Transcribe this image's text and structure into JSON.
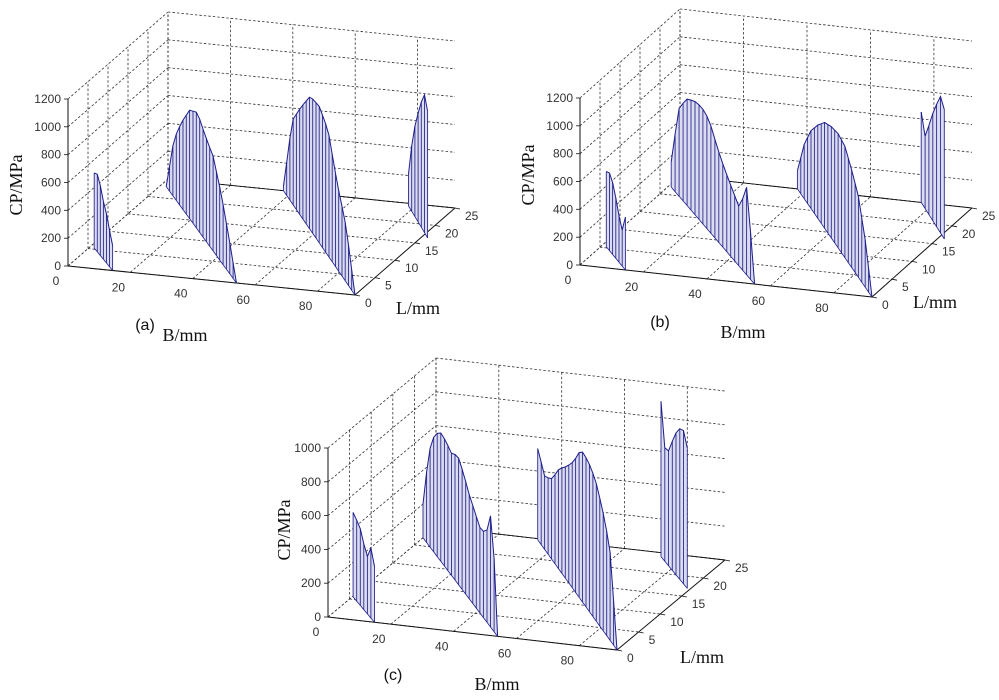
{
  "chart_data": [
    {
      "type": "stem3",
      "panel_label": "(a)",
      "xlabel": "B/mm",
      "ylabel": "L/mm",
      "zlabel": "CP/MPa",
      "xlim": [
        0,
        92
      ],
      "ylim": [
        0,
        25
      ],
      "zlim": [
        0,
        1200
      ],
      "xticks": [
        "0",
        "20",
        "40",
        "60",
        "80"
      ],
      "yticks": [
        "0",
        "5",
        "10",
        "15",
        "20",
        "25"
      ],
      "zticks": [
        "0",
        "200",
        "400",
        "600",
        "800",
        "1000",
        "1200"
      ],
      "grid": true,
      "ridges": [
        {
          "start": [
            1.6,
            5.3
          ],
          "end": [
            14.3,
            0
          ],
          "stems": 7,
          "cp": [
            540,
            560,
            540,
            430,
            400,
            330,
            250,
            180
          ]
        },
        {
          "start": [
            2,
            23
          ],
          "end": [
            54,
            0
          ],
          "stems": 22,
          "cp": [
            0,
            420,
            620,
            780,
            840,
            750,
            680,
            500,
            260,
            0
          ]
        },
        {
          "start": [
            37,
            25
          ],
          "end": [
            92,
            0
          ],
          "stems": 23,
          "cp": [
            30,
            600,
            790,
            960,
            980,
            900,
            620,
            400,
            0
          ]
        },
        {
          "start": [
            78,
            24.3
          ],
          "end": [
            94,
            16.6
          ],
          "stems": 7,
          "cp": [
            230,
            470,
            650,
            780,
            900,
            990,
            910
          ]
        }
      ]
    },
    {
      "type": "stem3",
      "panel_label": "(b)",
      "xlabel": "B/mm",
      "ylabel": "L/mm",
      "zlabel": "CP/MPa",
      "xlim": [
        0,
        92
      ],
      "ylim": [
        0,
        25
      ],
      "zlim": [
        0,
        1200
      ],
      "xticks": [
        "0",
        "20",
        "40",
        "60",
        "80"
      ],
      "yticks": [
        "0",
        "5",
        "10",
        "15",
        "20",
        "25"
      ],
      "zticks": [
        "0",
        "200",
        "400",
        "600",
        "800",
        "1000",
        "1200"
      ],
      "grid": true,
      "ridges": [
        {
          "start": [
            1.6,
            5.3
          ],
          "end": [
            14.3,
            0
          ],
          "stems": 7,
          "cp": [
            540,
            560,
            540,
            470,
            400,
            300,
            250,
            380
          ]
        },
        {
          "start": [
            1,
            22
          ],
          "end": [
            55,
            0
          ],
          "stems": 22,
          "cp": [
            180,
            625,
            760,
            810,
            830,
            800,
            680,
            580,
            500,
            420,
            640,
            0
          ]
        },
        {
          "start": [
            37,
            25
          ],
          "end": [
            92,
            0
          ],
          "stems": 23,
          "cp": [
            130,
            390,
            560,
            670,
            760,
            800,
            820,
            800,
            700,
            580,
            340,
            0
          ]
        },
        {
          "start": [
            76,
            25
          ],
          "end": [
            94,
            16.5
          ],
          "stems": 7,
          "cp": [
            650,
            520,
            640,
            770,
            880,
            980,
            930
          ]
        }
      ]
    },
    {
      "type": "stem3",
      "panel_label": "(c)",
      "xlabel": "B/mm",
      "ylabel": "L/mm",
      "zlabel": "CP/MPa",
      "xlim": [
        0,
        92
      ],
      "ylim": [
        0,
        25
      ],
      "zlim": [
        0,
        1000
      ],
      "xticks": [
        "0",
        "20",
        "40",
        "60",
        "80"
      ],
      "yticks": [
        "0",
        "5",
        "10",
        "15",
        "20",
        "25"
      ],
      "zticks": [
        "0",
        "200",
        "400",
        "600",
        "800",
        "1000"
      ],
      "grid": true,
      "ridges": [
        {
          "start": [
            0.3,
            5.6
          ],
          "end": [
            14.8,
            0
          ],
          "stems": 7,
          "cp": [
            500,
            480,
            470,
            420,
            360,
            330,
            430,
            330
          ]
        },
        {
          "start": [
            0,
            22
          ],
          "end": [
            54,
            0
          ],
          "stems": 22,
          "cp": [
            200,
            550,
            700,
            760,
            750,
            720,
            760,
            700,
            620,
            560,
            500,
            520,
            700,
            0
          ]
        },
        {
          "start": [
            32.8,
            24.7
          ],
          "end": [
            92,
            0
          ],
          "stems": 24,
          "cp": [
            540,
            430,
            480,
            600,
            670,
            760,
            890,
            880,
            830,
            710,
            545,
            0
          ]
        },
        {
          "start": [
            73,
            24
          ],
          "end": [
            91,
            17
          ],
          "stems": 8,
          "cp": [
            920,
            630,
            700,
            810,
            880,
            920,
            830
          ]
        }
      ]
    }
  ]
}
